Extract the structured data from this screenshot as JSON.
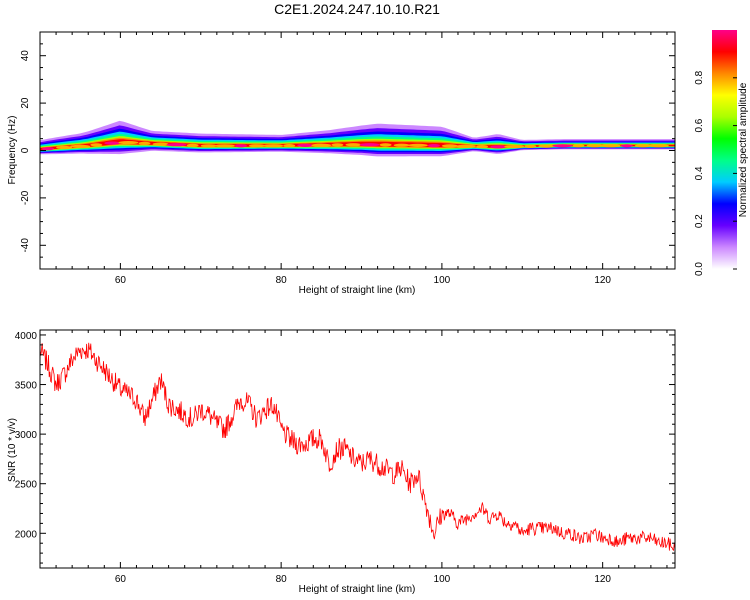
{
  "title": "C2E1.2024.247.10.10.R21",
  "chart_data": [
    {
      "type": "heatmap",
      "xlabel": "Height of straight line (km)",
      "ylabel": "Frequency (Hz)",
      "xlim": [
        50,
        129
      ],
      "ylim": [
        -50,
        50
      ],
      "xticks": [
        60,
        80,
        100,
        120
      ],
      "yticks": [
        40,
        20,
        0,
        -20,
        -40
      ],
      "colorbar": {
        "label": "Normalized spectral amplitude",
        "range": [
          0,
          1
        ],
        "ticks": [
          "0.0",
          "0.2",
          "0.4",
          "0.6",
          "0.8"
        ],
        "colors": [
          "#ffffff",
          "#cc88ff",
          "#6600ff",
          "#0000ff",
          "#00ccff",
          "#00ff88",
          "#00ff00",
          "#aaff00",
          "#ffff00",
          "#ff8800",
          "#ff0000",
          "#ff0088"
        ]
      },
      "signal": {
        "description_values": "dominant frequency ridge near 1–3 Hz across all heights",
        "ridge": [
          {
            "x": 50,
            "freq": 0.5,
            "amp": 1.0
          },
          {
            "x": 52,
            "freq": 1.0,
            "amp": 1.0
          },
          {
            "x": 56,
            "freq": 2.0,
            "amp": 0.85
          },
          {
            "x": 60,
            "freq": 3.5,
            "amp": 0.9
          },
          {
            "x": 63,
            "freq": 3.0,
            "amp": 0.85
          },
          {
            "x": 70,
            "freq": 2.0,
            "amp": 0.9
          },
          {
            "x": 80,
            "freq": 2.0,
            "amp": 0.9
          },
          {
            "x": 90,
            "freq": 2.5,
            "amp": 0.85
          },
          {
            "x": 100,
            "freq": 2.0,
            "amp": 0.85
          },
          {
            "x": 107,
            "freq": 1.5,
            "amp": 0.9
          },
          {
            "x": 115,
            "freq": 2.0,
            "amp": 0.95
          },
          {
            "x": 129,
            "freq": 2.0,
            "amp": 0.95
          }
        ],
        "spread": [
          {
            "x": 50,
            "hz": 2
          },
          {
            "x": 55,
            "hz": 3
          },
          {
            "x": 60,
            "hz": 5
          },
          {
            "x": 64,
            "hz": 3
          },
          {
            "x": 80,
            "hz": 2.5
          },
          {
            "x": 86,
            "hz": 3.5
          },
          {
            "x": 92,
            "hz": 5
          },
          {
            "x": 100,
            "hz": 4.5
          },
          {
            "x": 104,
            "hz": 2
          },
          {
            "x": 107,
            "hz": 3
          },
          {
            "x": 110,
            "hz": 1.5
          },
          {
            "x": 129,
            "hz": 1.5
          }
        ]
      }
    },
    {
      "type": "line",
      "xlabel": "Height of straight line (km)",
      "ylabel": "SNR (10 * v/v)",
      "xlim": [
        50,
        129
      ],
      "ylim": [
        1650,
        4050
      ],
      "xticks": [
        60,
        80,
        100,
        120
      ],
      "yticks": [
        4000,
        3500,
        3000,
        2500,
        2000
      ],
      "color": "#ff0000",
      "series": [
        {
          "values_x": [
            50,
            51,
            52,
            53,
            54,
            55,
            56,
            57,
            58,
            59,
            60,
            61,
            62,
            63,
            64,
            65,
            66,
            67,
            68,
            69,
            70,
            71,
            72,
            73,
            74,
            75,
            76,
            77,
            78,
            79,
            80,
            81,
            82,
            83,
            84,
            85,
            86,
            87,
            88,
            89,
            90,
            91,
            92,
            93,
            94,
            95,
            96,
            97,
            98,
            99,
            100,
            101,
            102,
            103,
            104,
            105,
            106,
            107,
            108,
            109,
            110,
            111,
            112,
            113,
            114,
            115,
            116,
            117,
            118,
            119,
            120,
            121,
            122,
            123,
            124,
            125,
            126,
            127,
            128,
            129
          ],
          "values_y": [
            3850,
            3700,
            3500,
            3600,
            3750,
            3850,
            3850,
            3750,
            3650,
            3550,
            3450,
            3400,
            3350,
            3150,
            3350,
            3550,
            3300,
            3250,
            3200,
            3150,
            3250,
            3200,
            3100,
            3050,
            3200,
            3350,
            3300,
            3150,
            3250,
            3300,
            3050,
            2950,
            2900,
            2900,
            2950,
            2950,
            2700,
            2850,
            2850,
            2750,
            2700,
            2750,
            2700,
            2650,
            2600,
            2650,
            2500,
            2600,
            2300,
            2000,
            2200,
            2200,
            2100,
            2150,
            2200,
            2250,
            2150,
            2200,
            2100,
            2100,
            2000,
            2050,
            2050,
            2050,
            2050,
            2000,
            2000,
            1950,
            1950,
            2000,
            1950,
            1950,
            1900,
            1950,
            1950,
            1950,
            1950,
            1900,
            1900,
            1850
          ]
        }
      ]
    }
  ]
}
